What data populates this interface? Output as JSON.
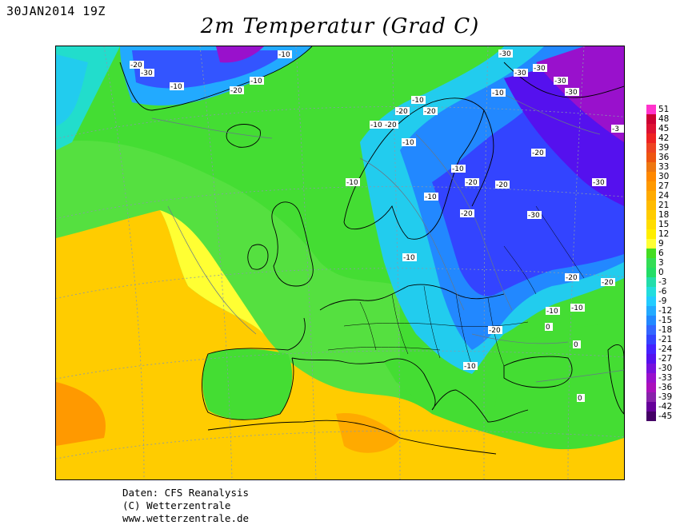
{
  "header": {
    "date_label": "30JAN2014 19Z",
    "title": "2m Temperatur (Grad C)"
  },
  "credits": {
    "line1": "Daten: CFS Reanalysis",
    "line2": "(C) Wetterzentrale",
    "line3": "www.wetterzentrale.de"
  },
  "legend": {
    "values": [
      "51",
      "48",
      "45",
      "42",
      "39",
      "36",
      "33",
      "30",
      "27",
      "24",
      "21",
      "18",
      "15",
      "12",
      "9",
      "6",
      "3",
      "0",
      "-3",
      "-6",
      "-9",
      "-12",
      "-15",
      "-18",
      "-21",
      "-24",
      "-27",
      "-30",
      "-33",
      "-36",
      "-39",
      "-42",
      "-45"
    ],
    "colors": [
      "#ff33cc",
      "#cc0033",
      "#dd1133",
      "#ee2222",
      "#ee4422",
      "#ee5511",
      "#ee7711",
      "#ff8800",
      "#ff9900",
      "#ffaa00",
      "#ffbb00",
      "#ffcc00",
      "#ffdd00",
      "#ffee00",
      "#ffff33",
      "#44dd22",
      "#33dd55",
      "#22dd66",
      "#22ddaa",
      "#22dddd",
      "#22ccff",
      "#22aaff",
      "#2288ff",
      "#3366ff",
      "#3344ff",
      "#4422ff",
      "#5511ee",
      "#7711dd",
      "#9911cc",
      "#aa11bb",
      "#8822aa",
      "#660099",
      "#440066"
    ]
  },
  "contour_labels": [
    {
      "text": "-20"
    },
    {
      "text": "-30"
    },
    {
      "text": "-10"
    },
    {
      "text": "-20"
    },
    {
      "text": "-10"
    },
    {
      "text": "-10"
    },
    {
      "text": "-30"
    },
    {
      "text": "-30"
    },
    {
      "text": "-30"
    },
    {
      "text": "-30"
    },
    {
      "text": "-30"
    },
    {
      "text": "-10"
    },
    {
      "text": "-10"
    },
    {
      "text": "-20"
    },
    {
      "text": "-20"
    },
    {
      "text": "-10"
    },
    {
      "text": "-20"
    },
    {
      "text": "-3"
    },
    {
      "text": "-10"
    },
    {
      "text": "-20"
    },
    {
      "text": "-10"
    },
    {
      "text": "-20"
    },
    {
      "text": "-20"
    },
    {
      "text": "-10"
    },
    {
      "text": "-10"
    },
    {
      "text": "-30"
    },
    {
      "text": "-20"
    },
    {
      "text": "-30"
    },
    {
      "text": "-10"
    },
    {
      "text": "-20"
    },
    {
      "text": "-20"
    },
    {
      "text": "-10"
    },
    {
      "text": "-10"
    },
    {
      "text": "0"
    },
    {
      "text": "-20"
    },
    {
      "text": "0"
    },
    {
      "text": "-10"
    },
    {
      "text": "0"
    }
  ]
}
